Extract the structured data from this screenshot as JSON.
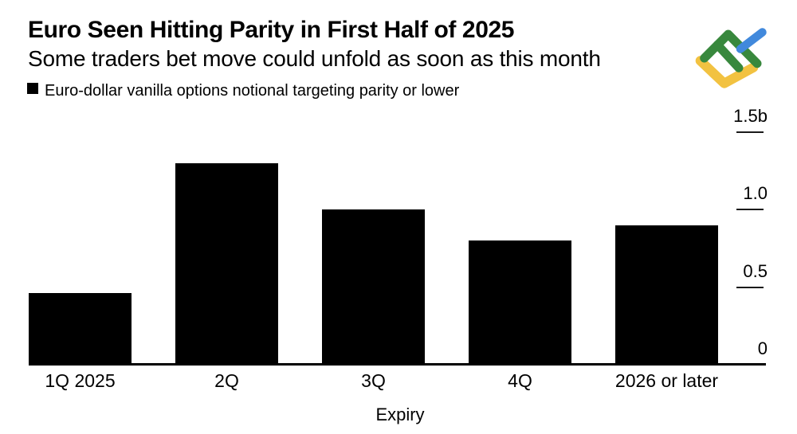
{
  "page": {
    "background": "#ffffff"
  },
  "header": {
    "title": "Euro Seen Hitting Parity in First Half of 2025",
    "subtitle": "Some traders bet move could unfold as soon as this month"
  },
  "legend": {
    "swatch_color": "#000000",
    "label": "Euro-dollar vanilla options notional targeting parity or lower"
  },
  "logo": {
    "name": "litefinance-logo",
    "colors": {
      "green": "#38883d",
      "blue": "#4189dc",
      "yellow": "#f2c241"
    }
  },
  "chart_data": {
    "type": "bar",
    "title": "Euro Seen Hitting Parity in First Half of 2025",
    "subtitle": "Some traders bet move could unfold as soon as this month",
    "series_name": "Euro-dollar vanilla options notional targeting parity or lower",
    "categories": [
      "1Q 2025",
      "2Q",
      "3Q",
      "4Q",
      "2026 or later"
    ],
    "values": [
      0.46,
      1.3,
      1.0,
      0.8,
      0.9
    ],
    "xlabel": "Expiry",
    "ylabel": "",
    "ylim": [
      0,
      1.5
    ],
    "yticks": [
      {
        "value": 0,
        "label": "0"
      },
      {
        "value": 0.5,
        "label": "0.5"
      },
      {
        "value": 1.0,
        "label": "1.0"
      },
      {
        "value": 1.5,
        "label": "1.5b"
      }
    ],
    "bar_color": "#000000",
    "grid": false,
    "legend_position": "top-left",
    "yaxis_side": "right"
  }
}
